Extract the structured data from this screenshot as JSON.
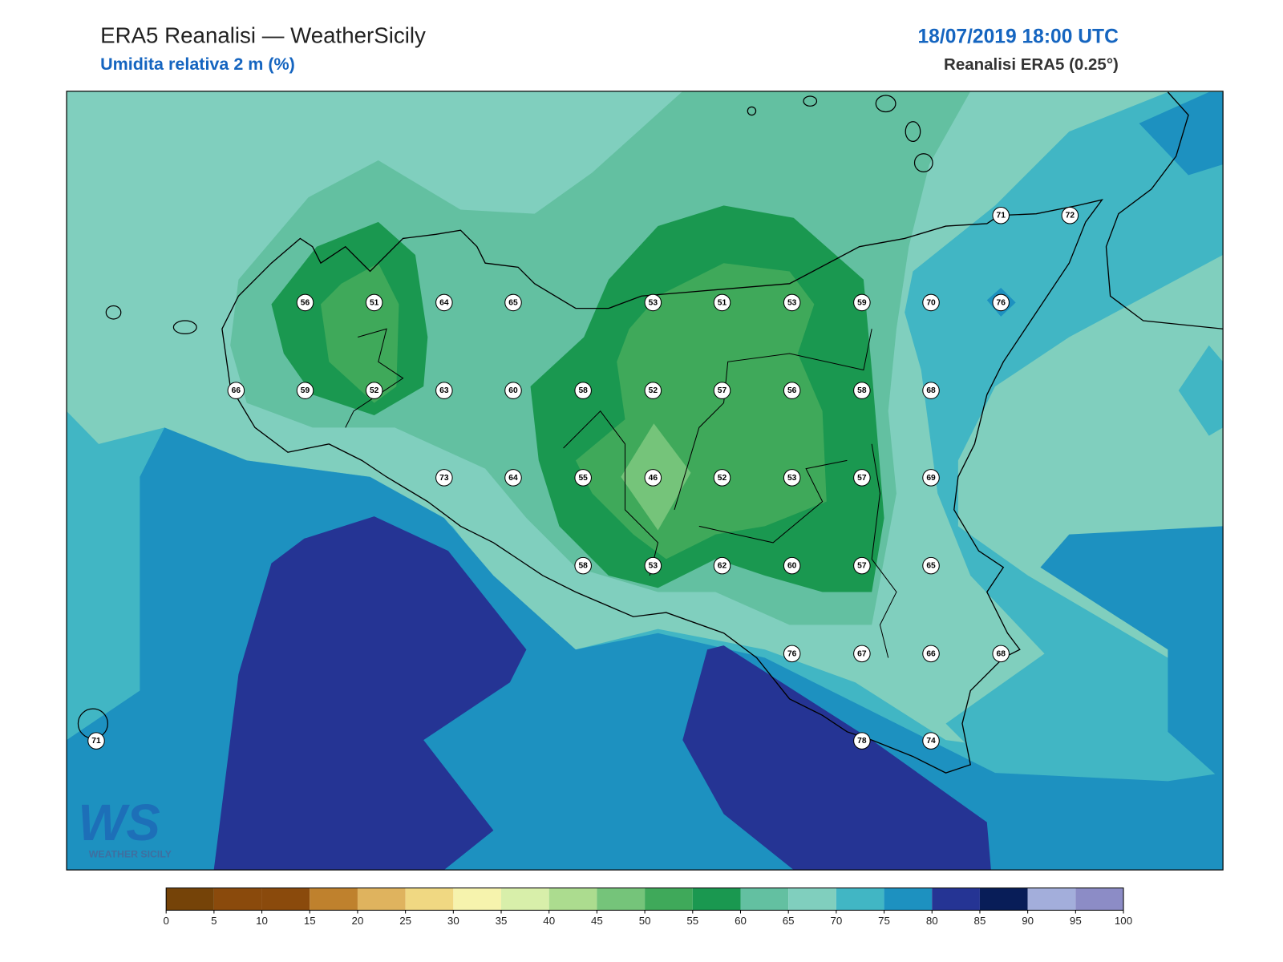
{
  "header": {
    "title": "ERA5 Reanalisi — WeatherSicily",
    "subtitle": "Umidita relativa 2 m (%)",
    "date": "18/07/2019 18:00 UTC",
    "source": "Reanalisi ERA5 (0.25°)"
  },
  "logo": {
    "mark": "WS",
    "caption": "WEATHER SICILY"
  },
  "stations": [
    71,
    72,
    56,
    51,
    64,
    65,
    53,
    51,
    53,
    59,
    70,
    76,
    66,
    59,
    52,
    63,
    60,
    58,
    52,
    57,
    56,
    58,
    68,
    73,
    64,
    55,
    46,
    52,
    53,
    57,
    69,
    58,
    53,
    62,
    60,
    57,
    65,
    76,
    67,
    66,
    68,
    71,
    78,
    74
  ],
  "colorbar": {
    "ticks": [
      0,
      5,
      10,
      15,
      20,
      25,
      30,
      35,
      40,
      45,
      50,
      55,
      60,
      65,
      70,
      75,
      80,
      85,
      90,
      95,
      100
    ],
    "colors": [
      "#754308",
      "#8a4a0c",
      "#8a4a0c",
      "#bf812d",
      "#dfb35e",
      "#f0d882",
      "#f6f3ad",
      "#d8efaa",
      "#acdc8f",
      "#75c47a",
      "#3fa95a",
      "#1a9850",
      "#63c0a1",
      "#80cfbe",
      "#41b6c4",
      "#1d91c0",
      "#253494",
      "#081d58",
      "#a3aedb",
      "#8c8cc6"
    ]
  }
}
